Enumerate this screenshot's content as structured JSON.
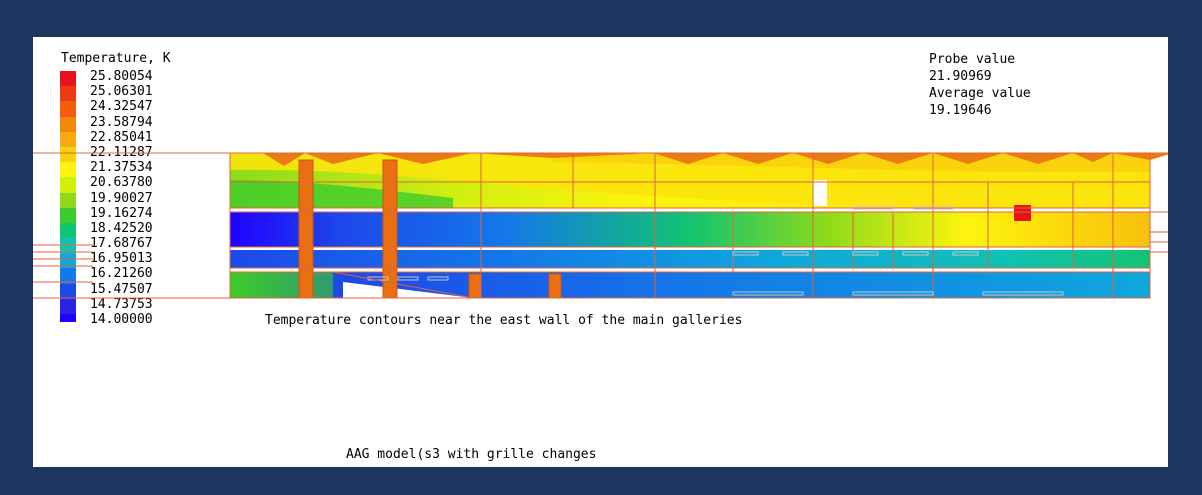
{
  "legend": {
    "title": "Temperature, K",
    "labels": [
      "25.80054",
      "25.06301",
      "24.32547",
      "23.58794",
      "22.85041",
      "22.11287",
      "21.37534",
      "20.63780",
      "19.90027",
      "19.16274",
      "18.42520",
      "17.68767",
      "16.95013",
      "16.21260",
      "15.47507",
      "14.73753",
      "14.00000"
    ],
    "colors": [
      "#e8121b",
      "#ee3a14",
      "#f15e10",
      "#f4860e",
      "#f8aa0d",
      "#fbd00c",
      "#fdf40d",
      "#d2ef10",
      "#8edb1a",
      "#3dcc2a",
      "#12c471",
      "#0fc2b2",
      "#0ea8dc",
      "#1478e8",
      "#1d48ea",
      "#2a22e6",
      "#2000ff"
    ]
  },
  "probe": {
    "probe_label": "Probe value",
    "probe_value": "21.90969",
    "average_label": "Average value",
    "average_value": "19.19646"
  },
  "caption": "Temperature contours near the east wall of the main galleries",
  "model_label": "AAG model(s3 with grille changes",
  "colors": {
    "background": "#1e3560",
    "panel": "#ffffff",
    "outline": "#e0643a",
    "column": "#ea6f12"
  }
}
